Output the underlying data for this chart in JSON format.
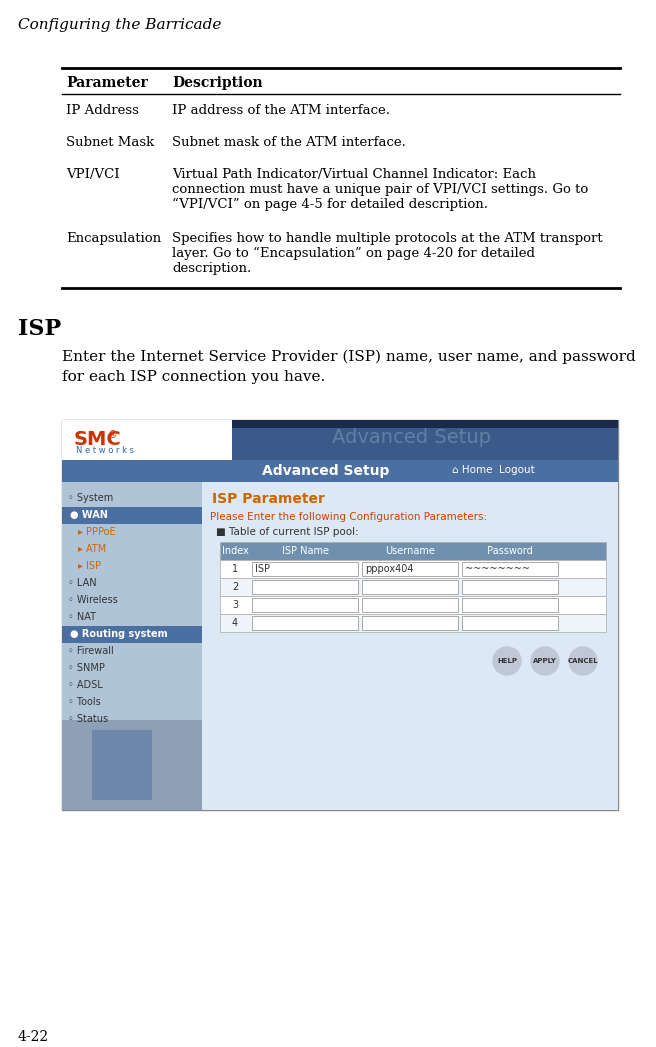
{
  "page_title": "Configuring the Barricade",
  "bg_color": "#ffffff",
  "table_header": [
    "Parameter",
    "Description"
  ],
  "section_title": "ISP",
  "body_text": "Enter the Internet Service Provider (ISP) name, user name, and password\nfor each ISP connection you have.",
  "page_number": "4-22",
  "screenshot": {
    "isp_title": "ISP Parameter",
    "config_text": "Please Enter the following Configuration Parameters:",
    "pool_text": "Table of current ISP pool:",
    "col_headers": [
      "Index",
      "ISP Name",
      "Username",
      "Password"
    ],
    "rows": [
      [
        "1",
        "ISP",
        "pppox404",
        "~~~~~~~~"
      ],
      [
        "2",
        "",
        "",
        ""
      ],
      [
        "3",
        "",
        "",
        ""
      ],
      [
        "4",
        "",
        "",
        ""
      ]
    ],
    "nav_items": [
      "System",
      "WAN",
      "PPPoE",
      "ATM",
      "ISP",
      "LAN",
      "Wireless",
      "NAT",
      "Routing system",
      "Firewall",
      "SNMP",
      "ADSL",
      "Tools",
      "Status"
    ],
    "advanced_setup": "Advanced Setup",
    "home_logout": "Home  Logout",
    "smc_text": "SMC",
    "networks_text": "N e t w o r k s"
  }
}
